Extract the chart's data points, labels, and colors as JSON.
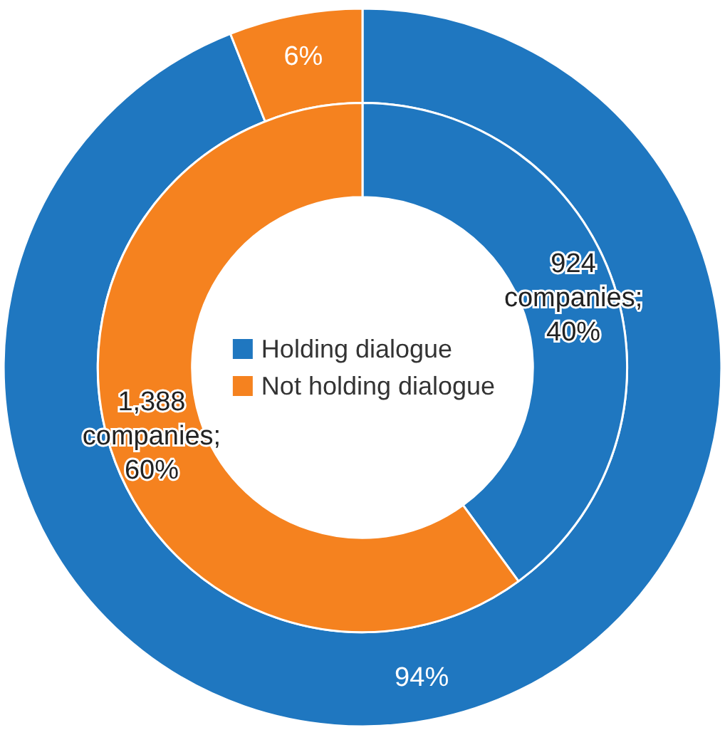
{
  "chart_data": {
    "type": "donut",
    "categories": [
      "Holding dialogue",
      "Not holding dialogue"
    ],
    "legend": "center",
    "series": [
      {
        "colors": [
          "#1f77c0",
          "#f5821f"
        ],
        "values": [
          94,
          6
        ],
        "value_labels": [
          "94%",
          "6%"
        ]
      },
      {
        "colors": [
          "#1f77c0",
          "#f5821f"
        ],
        "values": [
          924,
          1388
        ],
        "value_labels": [
          "924 companies; 40%",
          "1,388 companies; 60%"
        ]
      }
    ]
  }
}
